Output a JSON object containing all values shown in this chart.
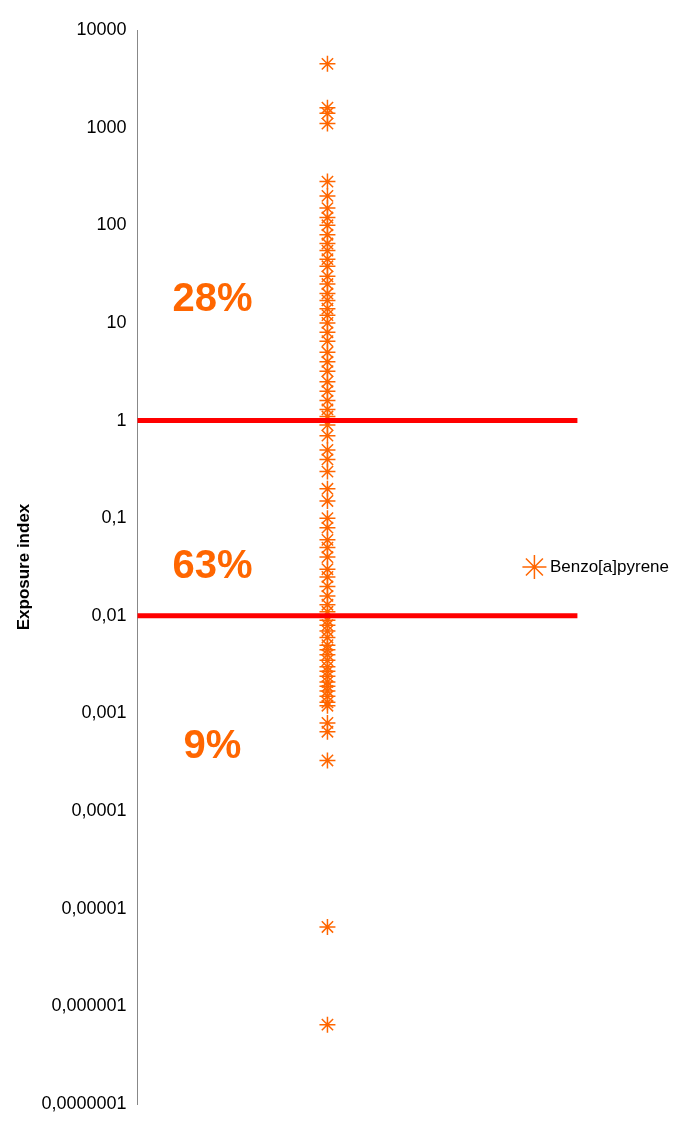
{
  "chart_data": {
    "type": "scatter",
    "ylabel": "Exposure index",
    "log": "y",
    "grid": false,
    "legend": "right",
    "marker": "cross",
    "tick_labels": "y",
    "categories": [
      null
    ],
    "ylim": [
      1e-07,
      10000
    ],
    "yticks": [
      {
        "value": 1e-07,
        "label": "0,0000001"
      },
      {
        "value": 1e-06,
        "label": "0,000001"
      },
      {
        "value": 1e-05,
        "label": "0,00001"
      },
      {
        "value": 0.0001,
        "label": "0,0001"
      },
      {
        "value": 0.001,
        "label": "0,001"
      },
      {
        "value": 0.01,
        "label": "0,01"
      },
      {
        "value": 0.1,
        "label": "0,1"
      },
      {
        "value": 1,
        "label": "1"
      },
      {
        "value": 10,
        "label": "10"
      },
      {
        "value": 100,
        "label": "100"
      },
      {
        "value": 1000,
        "label": "1000"
      },
      {
        "value": 10000,
        "label": "10000"
      }
    ],
    "series": [
      {
        "name": "Benzo[a]pyrene",
        "color": "#ff6600",
        "x": [
          null,
          null,
          null,
          null,
          null,
          null,
          null,
          null,
          null,
          null,
          null,
          null,
          null,
          null,
          null,
          null,
          null,
          null,
          null,
          null,
          null,
          null,
          null,
          null,
          null,
          null,
          null,
          null,
          null,
          null,
          null,
          null,
          null,
          null,
          null,
          null,
          null,
          null,
          null,
          null,
          null,
          null,
          null,
          null,
          null,
          null,
          null,
          null,
          null,
          null,
          null,
          null,
          null,
          null,
          null,
          null,
          null,
          null,
          null,
          null,
          null,
          null,
          null,
          null,
          null,
          null,
          null,
          null,
          null,
          null,
          null
        ],
        "values": [
          4500,
          1600,
          1400,
          1100,
          280,
          200,
          150,
          120,
          100,
          80,
          65,
          55,
          45,
          38,
          30,
          25,
          20,
          17,
          14,
          12,
          10,
          8,
          6.5,
          5,
          4,
          3.2,
          2.5,
          2,
          1.6,
          1.3,
          1.1,
          0.9,
          0.7,
          0.5,
          0.4,
          0.3,
          0.2,
          0.15,
          0.1,
          0.08,
          0.06,
          0.05,
          0.04,
          0.03,
          0.025,
          0.02,
          0.016,
          0.013,
          0.011,
          0.009,
          0.008,
          0.007,
          0.006,
          0.005,
          0.0045,
          0.004,
          0.0035,
          0.003,
          0.0027,
          0.0024,
          0.0021,
          0.0019,
          0.0017,
          0.0015,
          0.0013,
          0.0012,
          0.0008,
          0.00065,
          0.00033,
          6.5e-06,
          6.5e-07
        ]
      }
    ],
    "ref_lines": [
      {
        "axis": "y",
        "value": 1,
        "color": "#ff0000"
      },
      {
        "axis": "y",
        "value": 0.01,
        "color": "#ff0000"
      }
    ],
    "annotations": [
      "28%",
      "63%",
      "9%"
    ]
  }
}
